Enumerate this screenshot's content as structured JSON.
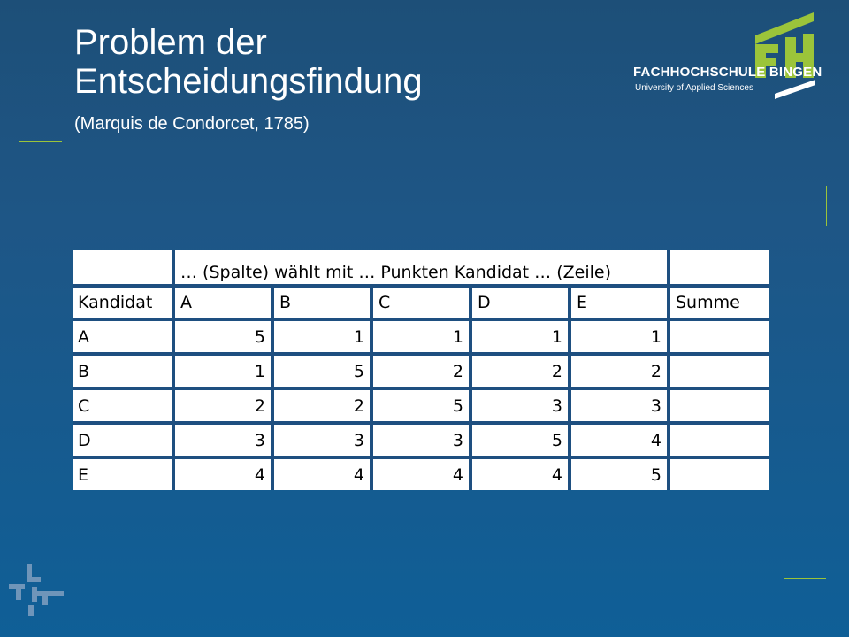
{
  "slide": {
    "title": "Problem der Entscheidungsfindung",
    "subtitle": "(Marquis de Condorcet, 1785)"
  },
  "logo": {
    "mark_text": "FH",
    "name": "FACHHOCHSCHULE BINGEN",
    "subtitle": "University of Applied Sciences",
    "mark_color": "#9bc43a"
  },
  "table": {
    "header_span": "… (Spalte) wählt mit … Punkten Kandidat … (Zeile)",
    "row_header": "Kandidat",
    "columns": [
      "A",
      "B",
      "C",
      "D",
      "E"
    ],
    "sum_header": "Summe",
    "rows": [
      {
        "label": "A",
        "values": [
          "5",
          "1",
          "1",
          "1",
          "1"
        ],
        "sum": ""
      },
      {
        "label": "B",
        "values": [
          "1",
          "5",
          "2",
          "2",
          "2"
        ],
        "sum": ""
      },
      {
        "label": "C",
        "values": [
          "2",
          "2",
          "5",
          "3",
          "3"
        ],
        "sum": ""
      },
      {
        "label": "D",
        "values": [
          "3",
          "3",
          "3",
          "5",
          "4"
        ],
        "sum": ""
      },
      {
        "label": "E",
        "values": [
          "4",
          "4",
          "4",
          "4",
          "5"
        ],
        "sum": ""
      }
    ]
  },
  "colors": {
    "background_top": "#1d4f78",
    "background_bottom": "#0f5f97",
    "accent_green": "#9bc43a",
    "table_border": "#1e4f80"
  },
  "icons": [
    "fh-logo-icon",
    "corner-cross-icon"
  ]
}
